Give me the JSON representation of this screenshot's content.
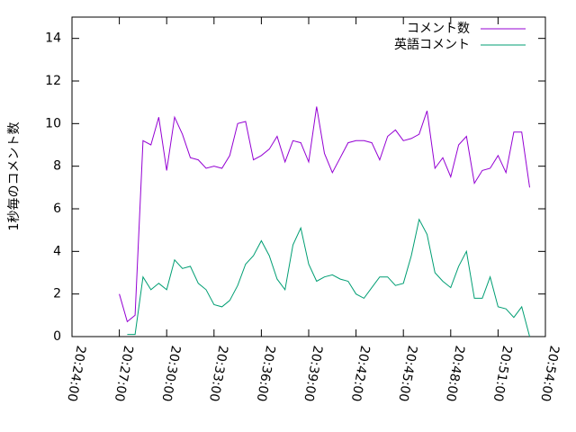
{
  "chart_data": {
    "type": "line",
    "ylabel": "1秒毎のコメント数",
    "x": [
      "20:27:00",
      "20:27:30",
      "20:28:00",
      "20:28:30",
      "20:29:00",
      "20:29:30",
      "20:30:00",
      "20:30:30",
      "20:31:00",
      "20:31:30",
      "20:32:00",
      "20:32:30",
      "20:33:00",
      "20:33:30",
      "20:34:00",
      "20:34:30",
      "20:35:00",
      "20:35:30",
      "20:36:00",
      "20:36:30",
      "20:37:00",
      "20:37:30",
      "20:38:00",
      "20:38:30",
      "20:39:00",
      "20:39:30",
      "20:40:00",
      "20:40:30",
      "20:41:00",
      "20:41:30",
      "20:42:00",
      "20:42:30",
      "20:43:00",
      "20:43:30",
      "20:44:00",
      "20:44:30",
      "20:45:00",
      "20:45:30",
      "20:46:00",
      "20:46:30",
      "20:47:00",
      "20:47:30",
      "20:48:00",
      "20:48:30",
      "20:49:00",
      "20:49:30",
      "20:50:00",
      "20:50:30",
      "20:51:00",
      "20:51:30",
      "20:52:00",
      "20:52:30",
      "20:53:00"
    ],
    "series": [
      {
        "name": "コメント数",
        "color": "#9400d3",
        "values": [
          2.0,
          0.7,
          1.0,
          9.2,
          9.0,
          10.3,
          7.8,
          10.3,
          9.5,
          8.4,
          8.3,
          7.9,
          8.0,
          7.9,
          8.5,
          10.0,
          10.1,
          8.3,
          8.5,
          8.8,
          9.4,
          8.2,
          9.2,
          9.1,
          8.2,
          10.8,
          8.6,
          7.7,
          8.4,
          9.1,
          9.2,
          9.2,
          9.1,
          8.3,
          9.4,
          9.7,
          9.2,
          9.3,
          9.5,
          10.6,
          7.9,
          8.4,
          7.5,
          9.0,
          9.4,
          7.2,
          7.8,
          7.9,
          8.5,
          7.7,
          9.6,
          9.6,
          7.0
        ]
      },
      {
        "name": "英語コメント",
        "color": "#009e73",
        "values": [
          null,
          0.1,
          0.1,
          2.8,
          2.2,
          2.5,
          2.2,
          3.6,
          3.2,
          3.3,
          2.5,
          2.2,
          1.5,
          1.4,
          1.7,
          2.4,
          3.4,
          3.8,
          4.5,
          3.8,
          2.7,
          2.2,
          4.3,
          5.1,
          3.4,
          2.6,
          2.8,
          2.9,
          2.7,
          2.6,
          2.0,
          1.8,
          2.3,
          2.8,
          2.8,
          2.4,
          2.5,
          3.8,
          5.5,
          4.8,
          3.0,
          2.6,
          2.3,
          3.3,
          4.0,
          1.8,
          1.8,
          2.8,
          1.4,
          1.3,
          0.9,
          1.4,
          0.0
        ]
      }
    ],
    "xlim": [
      "20:24:00",
      "20:54:00"
    ],
    "xticks": [
      "20:24:00",
      "20:27:00",
      "20:30:00",
      "20:33:00",
      "20:36:00",
      "20:39:00",
      "20:42:00",
      "20:45:00",
      "20:48:00",
      "20:51:00",
      "20:54:00"
    ],
    "ylim": [
      0,
      15
    ],
    "yticks": [
      0,
      2,
      4,
      6,
      8,
      10,
      12,
      14
    ],
    "legend": "top-right"
  }
}
